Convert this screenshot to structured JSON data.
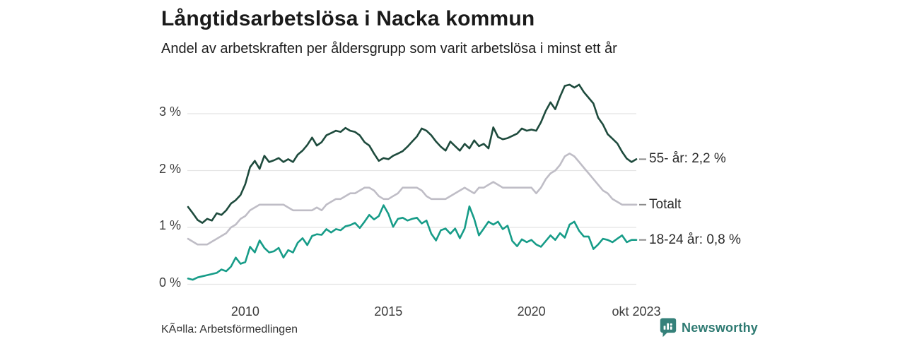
{
  "header": {
    "title": "Långtidsarbetslösa i Nacka kommun",
    "subtitle": "Andel av arbetskraften per åldersgrupp som varit arbetslösa i minst ett år"
  },
  "footer": {
    "source": "KÃ¤lla: Arbetsförmedlingen",
    "brand": "Newsworthy",
    "brand_icon": "newsworthy-bar-chart-bubble-icon",
    "brand_color": "#35817a"
  },
  "chart_data": {
    "type": "line",
    "title": "Långtidsarbetslösa i Nacka kommun",
    "x_start": "2008-01",
    "x_end": "2023-10",
    "points_step_months": 2,
    "unit": "%",
    "ylim": [
      0,
      3.6
    ],
    "grid": "horizontal",
    "gridline_color": "#e4e4e4",
    "legend_position": "right-of-line-ends",
    "connector_dash_color": "#8a8a8a",
    "y_ticks": [
      {
        "label": "0 %",
        "value": 0
      },
      {
        "label": "1 %",
        "value": 1
      },
      {
        "label": "2 %",
        "value": 2
      },
      {
        "label": "3 %",
        "value": 3
      }
    ],
    "x_ticks": [
      {
        "label": "2010",
        "index": 12
      },
      {
        "label": "2015",
        "index": 42
      },
      {
        "label": "2020",
        "index": 72
      },
      {
        "label": "okt 2023",
        "index": 94
      }
    ],
    "series": [
      {
        "name": "55- år",
        "end_label": "55- år: 2,2 %",
        "end_value": "2,2 %",
        "color": "#1e4b3d",
        "values": [
          1.36,
          1.25,
          1.13,
          1.08,
          1.15,
          1.12,
          1.25,
          1.22,
          1.3,
          1.42,
          1.48,
          1.57,
          1.76,
          2.06,
          2.17,
          2.03,
          2.26,
          2.15,
          2.18,
          2.22,
          2.15,
          2.2,
          2.15,
          2.28,
          2.35,
          2.45,
          2.58,
          2.44,
          2.5,
          2.62,
          2.66,
          2.7,
          2.68,
          2.75,
          2.7,
          2.68,
          2.62,
          2.5,
          2.44,
          2.3,
          2.17,
          2.22,
          2.2,
          2.26,
          2.3,
          2.34,
          2.42,
          2.51,
          2.6,
          2.74,
          2.7,
          2.62,
          2.51,
          2.42,
          2.35,
          2.51,
          2.43,
          2.35,
          2.47,
          2.39,
          2.53,
          2.43,
          2.47,
          2.39,
          2.76,
          2.59,
          2.55,
          2.57,
          2.61,
          2.65,
          2.74,
          2.7,
          2.72,
          2.7,
          2.85,
          3.05,
          3.2,
          3.08,
          3.3,
          3.49,
          3.51,
          3.46,
          3.51,
          3.38,
          3.28,
          3.18,
          2.93,
          2.81,
          2.64,
          2.56,
          2.48,
          2.33,
          2.21,
          2.15,
          2.2
        ]
      },
      {
        "name": "Totalt",
        "end_label": "Totalt",
        "end_value": "1,4 %",
        "color": "#bfbdc6",
        "values": [
          0.8,
          0.75,
          0.7,
          0.7,
          0.7,
          0.75,
          0.8,
          0.85,
          0.9,
          1.0,
          1.05,
          1.15,
          1.2,
          1.3,
          1.35,
          1.4,
          1.4,
          1.4,
          1.4,
          1.4,
          1.4,
          1.35,
          1.3,
          1.3,
          1.3,
          1.3,
          1.3,
          1.35,
          1.3,
          1.4,
          1.45,
          1.5,
          1.5,
          1.55,
          1.6,
          1.6,
          1.65,
          1.7,
          1.7,
          1.65,
          1.55,
          1.5,
          1.5,
          1.55,
          1.6,
          1.7,
          1.7,
          1.7,
          1.7,
          1.65,
          1.55,
          1.5,
          1.5,
          1.5,
          1.5,
          1.55,
          1.6,
          1.65,
          1.7,
          1.65,
          1.6,
          1.7,
          1.7,
          1.75,
          1.8,
          1.75,
          1.7,
          1.7,
          1.7,
          1.7,
          1.7,
          1.7,
          1.7,
          1.6,
          1.7,
          1.85,
          1.95,
          2.0,
          2.1,
          2.25,
          2.3,
          2.25,
          2.15,
          2.05,
          1.95,
          1.85,
          1.75,
          1.65,
          1.6,
          1.5,
          1.45,
          1.4,
          1.4,
          1.4,
          1.4
        ]
      },
      {
        "name": "18-24 år",
        "end_label": "18-24 år: 0,8 %",
        "end_value": "0,8 %",
        "color": "#179c88",
        "values": [
          0.1,
          0.08,
          0.12,
          0.14,
          0.16,
          0.18,
          0.2,
          0.26,
          0.23,
          0.31,
          0.47,
          0.36,
          0.39,
          0.66,
          0.56,
          0.77,
          0.64,
          0.56,
          0.58,
          0.64,
          0.47,
          0.6,
          0.56,
          0.73,
          0.81,
          0.69,
          0.85,
          0.88,
          0.87,
          0.97,
          0.91,
          0.97,
          0.95,
          1.02,
          1.04,
          1.08,
          0.99,
          1.1,
          1.22,
          1.14,
          1.2,
          1.39,
          1.24,
          1.01,
          1.15,
          1.17,
          1.12,
          1.15,
          1.17,
          1.07,
          1.12,
          0.89,
          0.77,
          0.95,
          0.98,
          0.89,
          0.98,
          0.81,
          0.98,
          1.37,
          1.15,
          0.86,
          0.98,
          1.1,
          1.05,
          1.1,
          0.97,
          1.03,
          0.76,
          0.67,
          0.79,
          0.74,
          0.78,
          0.7,
          0.66,
          0.76,
          0.86,
          0.78,
          0.9,
          0.82,
          1.05,
          1.1,
          0.94,
          0.84,
          0.84,
          0.62,
          0.7,
          0.8,
          0.78,
          0.74,
          0.8,
          0.86,
          0.74,
          0.78,
          0.78
        ]
      }
    ]
  }
}
